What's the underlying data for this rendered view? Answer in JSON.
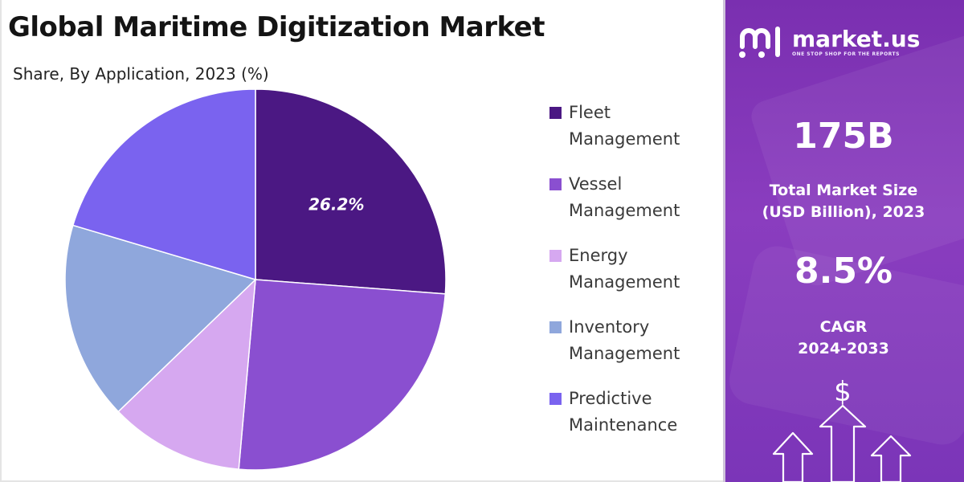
{
  "title": "Global Maritime Digitization Market",
  "subtitle": "Share, By Application, 2023 (%)",
  "chart_data": {
    "type": "pie",
    "title": "Global Maritime Digitization Market",
    "subtitle": "Share, By Application, 2023 (%)",
    "slices": [
      {
        "label": "Fleet Management",
        "value": 26.2,
        "color": "#4b1883",
        "show_label": true
      },
      {
        "label": "Vessel Management",
        "value": 25.2,
        "color": "#8a4fd0",
        "show_label": false
      },
      {
        "label": "Energy Management",
        "value": 11.4,
        "color": "#d6a8f0",
        "show_label": false
      },
      {
        "label": "Inventory Management",
        "value": 16.8,
        "color": "#8fa7dc",
        "show_label": false
      },
      {
        "label": "Predictive Maintenance",
        "value": 20.4,
        "color": "#7a63ef",
        "show_label": false
      }
    ],
    "start_angle_deg": 0,
    "direction": "clockwise",
    "legend_position": "right",
    "data_labels": [
      "26.2%"
    ]
  },
  "legend": [
    {
      "line1": "Fleet",
      "line2": "Management",
      "color": "#4b1883"
    },
    {
      "line1": "Vessel",
      "line2": "Management",
      "color": "#8a4fd0"
    },
    {
      "line1": "Energy",
      "line2": "Management",
      "color": "#d6a8f0"
    },
    {
      "line1": "Inventory",
      "line2": "Management",
      "color": "#8fa7dc"
    },
    {
      "line1": "Predictive",
      "line2": "Maintenance",
      "color": "#7a63ef"
    }
  ],
  "brand": {
    "name": "market.us",
    "tagline": "ONE STOP SHOP FOR THE REPORTS"
  },
  "stats": {
    "market_size_value": "175B",
    "market_size_label_1": "Total Market Size",
    "market_size_label_2": "(USD Billion), 2023",
    "cagr_value": "8.5%",
    "cagr_label_1": "CAGR",
    "cagr_label_2": "2024-2033"
  },
  "icons": {
    "dollar": "$",
    "arrows": "growth-arrows-icon"
  },
  "colors": {
    "panel_top": "#7a2fb0",
    "panel_mid": "#8a3dbf"
  }
}
